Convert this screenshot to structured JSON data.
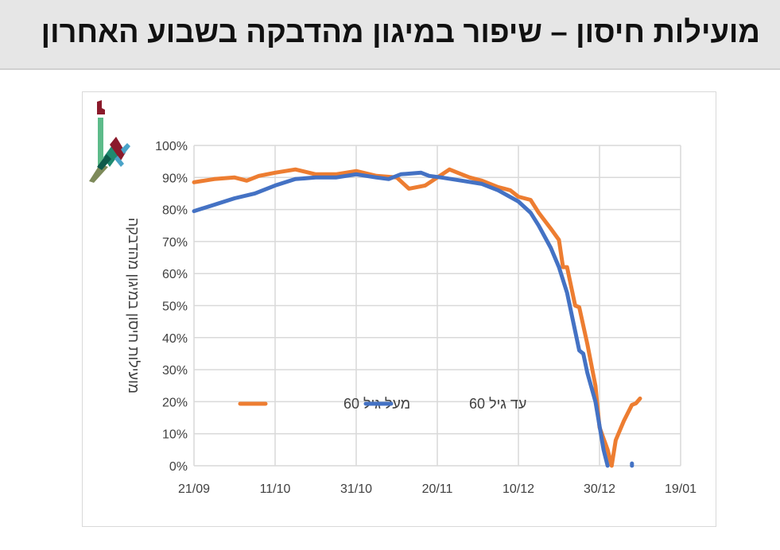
{
  "header": {
    "title": "מועילות חיסון – שיפור במיגון מהדבקה בשבוע האחרון"
  },
  "colors": {
    "series_above_60": "#ed7d31",
    "series_under_60": "#4472c4",
    "grid": "#d9d9d9"
  },
  "logo": {
    "icon": "ministry-of-health-logo"
  },
  "chart_data": {
    "type": "line",
    "title": "",
    "xlabel": "",
    "ylabel": "מועילות חיסון במיגון מהדבקה",
    "xlim": [
      "2020-09-21",
      "2021-01-19"
    ],
    "ylim": [
      0,
      100
    ],
    "grid": true,
    "legend_placement": "inside-bottom-left",
    "x_ticks": [
      {
        "date": "2020-09-21",
        "label": "21/09"
      },
      {
        "date": "2020-10-11",
        "label": "11/10"
      },
      {
        "date": "2020-10-31",
        "label": "31/10"
      },
      {
        "date": "2020-11-20",
        "label": "20/11"
      },
      {
        "date": "2020-12-10",
        "label": "10/12"
      },
      {
        "date": "2020-12-30",
        "label": "30/12"
      },
      {
        "date": "2021-01-19",
        "label": "19/01"
      }
    ],
    "y_ticks": [
      {
        "value": 0,
        "label": "0%"
      },
      {
        "value": 10,
        "label": "10%"
      },
      {
        "value": 20,
        "label": "20%"
      },
      {
        "value": 30,
        "label": "30%"
      },
      {
        "value": 40,
        "label": "40%"
      },
      {
        "value": 50,
        "label": "50%"
      },
      {
        "value": 60,
        "label": "60%"
      },
      {
        "value": 70,
        "label": "70%"
      },
      {
        "value": 80,
        "label": "80%"
      },
      {
        "value": 90,
        "label": "90%"
      },
      {
        "value": 100,
        "label": "100%"
      }
    ],
    "series": [
      {
        "name": "מעל גיל 60",
        "color": "#ed7d31",
        "points": [
          [
            "2020-09-21",
            88.5
          ],
          [
            "2020-09-26",
            89.5
          ],
          [
            "2020-10-01",
            90
          ],
          [
            "2020-10-04",
            89
          ],
          [
            "2020-10-07",
            90.5
          ],
          [
            "2020-10-11",
            91.5
          ],
          [
            "2020-10-16",
            92.5
          ],
          [
            "2020-10-21",
            91
          ],
          [
            "2020-10-26",
            91
          ],
          [
            "2020-10-31",
            92
          ],
          [
            "2020-11-05",
            90.5
          ],
          [
            "2020-11-10",
            90
          ],
          [
            "2020-11-13",
            86.5
          ],
          [
            "2020-11-17",
            87.5
          ],
          [
            "2020-11-20",
            90
          ],
          [
            "2020-11-23",
            92.5
          ],
          [
            "2020-11-26",
            91
          ],
          [
            "2020-11-28",
            90
          ],
          [
            "2020-12-01",
            89
          ],
          [
            "2020-12-05",
            87
          ],
          [
            "2020-12-08",
            86
          ],
          [
            "2020-12-10",
            84
          ],
          [
            "2020-12-13",
            83
          ],
          [
            "2020-12-15",
            79
          ],
          [
            "2020-12-18",
            74
          ],
          [
            "2020-12-20",
            70.5
          ],
          [
            "2020-12-21",
            62
          ],
          [
            "2020-12-22",
            62
          ],
          [
            "2020-12-24",
            50
          ],
          [
            "2020-12-25",
            49.5
          ],
          [
            "2020-12-27",
            38
          ],
          [
            "2020-12-29",
            25
          ],
          [
            "2020-12-30",
            12
          ],
          [
            "2021-01-01",
            5
          ],
          [
            "2021-01-02",
            0
          ],
          [
            "2021-01-03",
            8
          ],
          [
            "2021-01-05",
            14
          ],
          [
            "2021-01-07",
            19
          ],
          [
            "2021-01-08",
            19.5
          ],
          [
            "2021-01-09",
            21
          ]
        ]
      },
      {
        "name": "עד גיל 60",
        "color": "#4472c4",
        "points": [
          [
            "2020-09-21",
            79.5
          ],
          [
            "2020-09-26",
            81.5
          ],
          [
            "2020-10-01",
            83.5
          ],
          [
            "2020-10-06",
            85
          ],
          [
            "2020-10-11",
            87.5
          ],
          [
            "2020-10-16",
            89.5
          ],
          [
            "2020-10-21",
            90
          ],
          [
            "2020-10-26",
            90
          ],
          [
            "2020-10-31",
            91
          ],
          [
            "2020-11-05",
            90
          ],
          [
            "2020-11-08",
            89.5
          ],
          [
            "2020-11-11",
            91
          ],
          [
            "2020-11-16",
            91.5
          ],
          [
            "2020-11-18",
            90.5
          ],
          [
            "2020-11-21",
            90
          ],
          [
            "2020-11-26",
            89
          ],
          [
            "2020-12-01",
            88
          ],
          [
            "2020-12-05",
            86
          ],
          [
            "2020-12-10",
            82.5
          ],
          [
            "2020-12-13",
            79
          ],
          [
            "2020-12-15",
            75
          ],
          [
            "2020-12-18",
            68
          ],
          [
            "2020-12-20",
            62
          ],
          [
            "2020-12-22",
            54
          ],
          [
            "2020-12-24",
            42
          ],
          [
            "2020-12-25",
            36
          ],
          [
            "2020-12-26",
            35
          ],
          [
            "2020-12-27",
            29
          ],
          [
            "2020-12-29",
            20
          ],
          [
            "2020-12-31",
            5
          ],
          [
            "2021-01-01",
            0
          ]
        ],
        "extra_points": [
          [
            "2021-01-07",
            0
          ],
          [
            "2021-01-07",
            0.7
          ]
        ]
      }
    ]
  }
}
